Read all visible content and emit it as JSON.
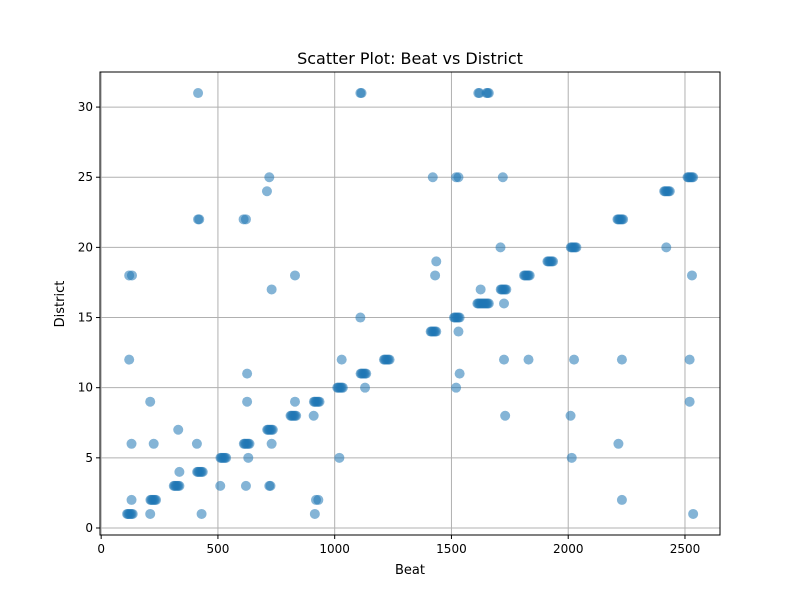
{
  "chart_data": {
    "type": "scatter",
    "title": "Scatter Plot: Beat vs District",
    "xlabel": "Beat",
    "ylabel": "District",
    "xlim": [
      -5,
      2650
    ],
    "ylim": [
      -0.5,
      32.5
    ],
    "xticks": [
      0,
      500,
      1000,
      1500,
      2000,
      2500
    ],
    "yticks": [
      0,
      5,
      10,
      15,
      20,
      25,
      30
    ],
    "grid": true,
    "point_color": "#1f77b4",
    "point_alpha": 0.55,
    "series": [
      {
        "points": [
          [
            111,
            1
          ],
          [
            115,
            1
          ],
          [
            120,
            1
          ],
          [
            125,
            1
          ],
          [
            130,
            1
          ],
          [
            135,
            1
          ],
          [
            211,
            2
          ],
          [
            215,
            2
          ],
          [
            220,
            2
          ],
          [
            225,
            2
          ],
          [
            230,
            2
          ],
          [
            235,
            2
          ],
          [
            311,
            3
          ],
          [
            315,
            3
          ],
          [
            320,
            3
          ],
          [
            325,
            3
          ],
          [
            330,
            3
          ],
          [
            335,
            3
          ],
          [
            411,
            4
          ],
          [
            415,
            4
          ],
          [
            420,
            4
          ],
          [
            425,
            4
          ],
          [
            430,
            4
          ],
          [
            435,
            4
          ],
          [
            511,
            5
          ],
          [
            515,
            5
          ],
          [
            520,
            5
          ],
          [
            525,
            5
          ],
          [
            530,
            5
          ],
          [
            535,
            5
          ],
          [
            611,
            6
          ],
          [
            615,
            6
          ],
          [
            620,
            6
          ],
          [
            625,
            6
          ],
          [
            630,
            6
          ],
          [
            635,
            6
          ],
          [
            711,
            7
          ],
          [
            715,
            7
          ],
          [
            720,
            7
          ],
          [
            725,
            7
          ],
          [
            730,
            7
          ],
          [
            735,
            7
          ],
          [
            811,
            8
          ],
          [
            815,
            8
          ],
          [
            820,
            8
          ],
          [
            825,
            8
          ],
          [
            830,
            8
          ],
          [
            835,
            8
          ],
          [
            911,
            9
          ],
          [
            915,
            9
          ],
          [
            920,
            9
          ],
          [
            925,
            9
          ],
          [
            930,
            9
          ],
          [
            935,
            9
          ],
          [
            1011,
            10
          ],
          [
            1015,
            10
          ],
          [
            1020,
            10
          ],
          [
            1025,
            10
          ],
          [
            1030,
            10
          ],
          [
            1035,
            10
          ],
          [
            1111,
            11
          ],
          [
            1115,
            11
          ],
          [
            1120,
            11
          ],
          [
            1125,
            11
          ],
          [
            1130,
            11
          ],
          [
            1135,
            11
          ],
          [
            1211,
            12
          ],
          [
            1215,
            12
          ],
          [
            1220,
            12
          ],
          [
            1225,
            12
          ],
          [
            1230,
            12
          ],
          [
            1235,
            12
          ],
          [
            1411,
            14
          ],
          [
            1415,
            14
          ],
          [
            1420,
            14
          ],
          [
            1425,
            14
          ],
          [
            1430,
            14
          ],
          [
            1435,
            14
          ],
          [
            1511,
            15
          ],
          [
            1515,
            15
          ],
          [
            1520,
            15
          ],
          [
            1525,
            15
          ],
          [
            1530,
            15
          ],
          [
            1535,
            15
          ],
          [
            1611,
            16
          ],
          [
            1615,
            16
          ],
          [
            1620,
            16
          ],
          [
            1625,
            16
          ],
          [
            1630,
            16
          ],
          [
            1635,
            16
          ],
          [
            1640,
            16
          ],
          [
            1645,
            16
          ],
          [
            1650,
            16
          ],
          [
            1655,
            16
          ],
          [
            1660,
            16
          ],
          [
            1711,
            17
          ],
          [
            1715,
            17
          ],
          [
            1720,
            17
          ],
          [
            1725,
            17
          ],
          [
            1730,
            17
          ],
          [
            1735,
            17
          ],
          [
            1811,
            18
          ],
          [
            1815,
            18
          ],
          [
            1820,
            18
          ],
          [
            1825,
            18
          ],
          [
            1830,
            18
          ],
          [
            1835,
            18
          ],
          [
            1911,
            19
          ],
          [
            1915,
            19
          ],
          [
            1920,
            19
          ],
          [
            1925,
            19
          ],
          [
            1930,
            19
          ],
          [
            1935,
            19
          ],
          [
            2011,
            20
          ],
          [
            2015,
            20
          ],
          [
            2020,
            20
          ],
          [
            2025,
            20
          ],
          [
            2030,
            20
          ],
          [
            2035,
            20
          ],
          [
            2211,
            22
          ],
          [
            2215,
            22
          ],
          [
            2220,
            22
          ],
          [
            2225,
            22
          ],
          [
            2230,
            22
          ],
          [
            2235,
            22
          ],
          [
            2411,
            24
          ],
          [
            2415,
            24
          ],
          [
            2420,
            24
          ],
          [
            2425,
            24
          ],
          [
            2430,
            24
          ],
          [
            2435,
            24
          ],
          [
            2511,
            25
          ],
          [
            2515,
            25
          ],
          [
            2520,
            25
          ],
          [
            2525,
            25
          ],
          [
            2530,
            25
          ],
          [
            2535,
            25
          ],
          [
            120,
            12
          ],
          [
            120,
            18
          ],
          [
            132,
            18
          ],
          [
            130,
            6
          ],
          [
            130,
            2
          ],
          [
            210,
            9
          ],
          [
            210,
            1
          ],
          [
            225,
            6
          ],
          [
            330,
            7
          ],
          [
            335,
            4
          ],
          [
            410,
            6
          ],
          [
            415,
            31
          ],
          [
            415,
            22
          ],
          [
            420,
            22
          ],
          [
            430,
            1
          ],
          [
            510,
            3
          ],
          [
            610,
            22
          ],
          [
            620,
            22
          ],
          [
            625,
            11
          ],
          [
            625,
            9
          ],
          [
            630,
            5
          ],
          [
            620,
            3
          ],
          [
            710,
            24
          ],
          [
            720,
            25
          ],
          [
            730,
            17
          ],
          [
            720,
            3
          ],
          [
            725,
            3
          ],
          [
            730,
            6
          ],
          [
            830,
            18
          ],
          [
            830,
            9
          ],
          [
            910,
            8
          ],
          [
            915,
            1
          ],
          [
            920,
            2
          ],
          [
            930,
            2
          ],
          [
            1030,
            12
          ],
          [
            1020,
            5
          ],
          [
            1110,
            31
          ],
          [
            1115,
            31
          ],
          [
            1110,
            15
          ],
          [
            1130,
            10
          ],
          [
            1420,
            25
          ],
          [
            1430,
            18
          ],
          [
            1435,
            19
          ],
          [
            1520,
            25
          ],
          [
            1530,
            25
          ],
          [
            1530,
            14
          ],
          [
            1535,
            11
          ],
          [
            1520,
            10
          ],
          [
            1615,
            31
          ],
          [
            1620,
            31
          ],
          [
            1650,
            31
          ],
          [
            1655,
            31
          ],
          [
            1660,
            31
          ],
          [
            1625,
            17
          ],
          [
            1720,
            25
          ],
          [
            1710,
            20
          ],
          [
            1725,
            16
          ],
          [
            1725,
            12
          ],
          [
            1730,
            8
          ],
          [
            1830,
            12
          ],
          [
            2010,
            8
          ],
          [
            2015,
            5
          ],
          [
            2025,
            12
          ],
          [
            2215,
            6
          ],
          [
            2230,
            12
          ],
          [
            2230,
            2
          ],
          [
            2420,
            20
          ],
          [
            2530,
            18
          ],
          [
            2520,
            12
          ],
          [
            2520,
            9
          ],
          [
            2535,
            1
          ]
        ]
      }
    ]
  }
}
